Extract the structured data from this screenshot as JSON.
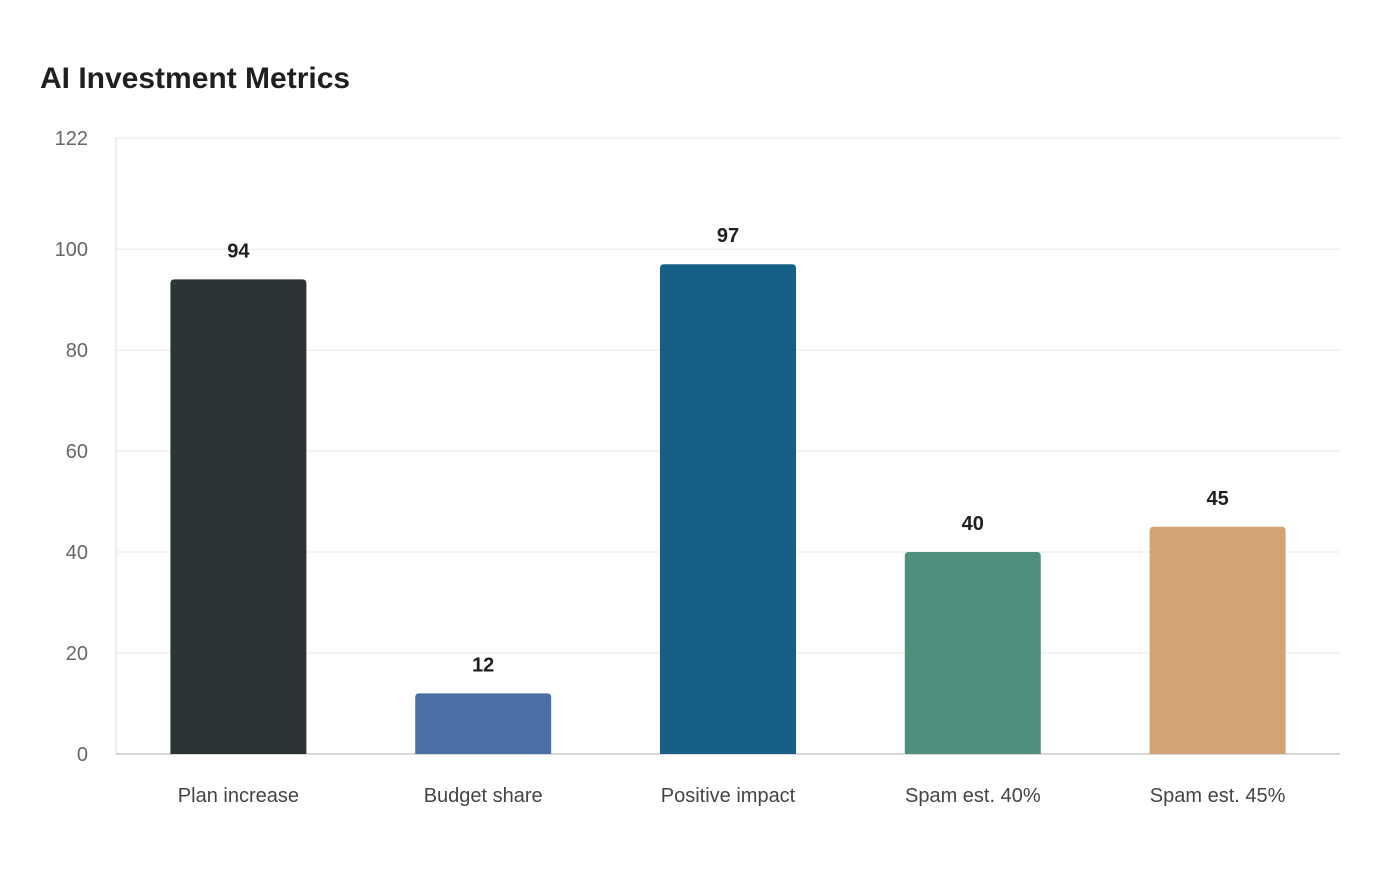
{
  "chart_data": {
    "type": "bar",
    "title": "AI Investment Metrics",
    "xlabel": "",
    "ylabel": "",
    "categories": [
      "Plan increase",
      "Budget share",
      "Positive impact",
      "Spam est. 40%",
      "Spam est. 45%"
    ],
    "values": [
      94,
      12,
      97,
      40,
      45
    ],
    "colors": [
      "#2d3436",
      "#4a6fa5",
      "#166088",
      "#4f8f7d",
      "#d4a373"
    ],
    "ylim": [
      0,
      122
    ],
    "yticks": [
      0,
      20,
      40,
      60,
      80,
      100,
      122
    ],
    "grid": true,
    "legend": "none",
    "data_labels": true
  }
}
